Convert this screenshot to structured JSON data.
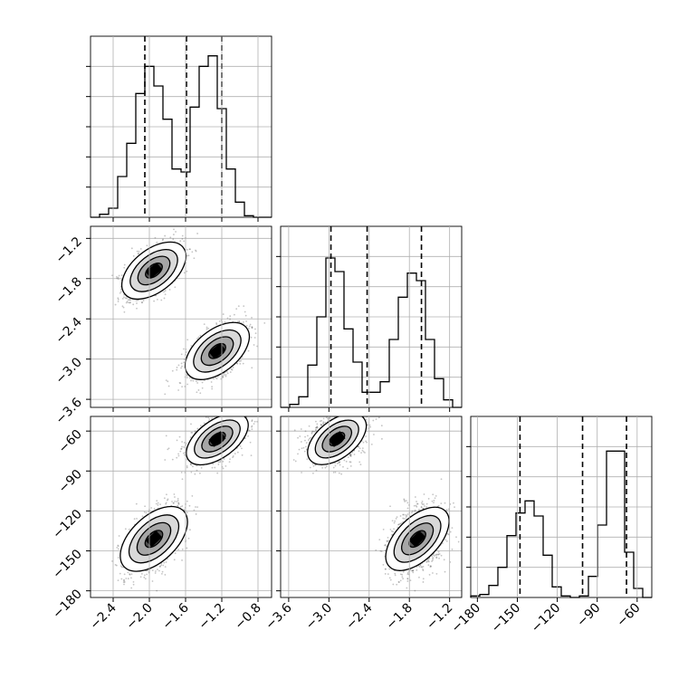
{
  "chart_data": {
    "type": "corner",
    "parameters": [
      {
        "xlim": [
          -2.65,
          -0.65
        ],
        "ticks": [
          -2.4,
          -2.0,
          -1.6,
          -1.2,
          -0.8
        ],
        "tick_labels": [
          "−2.4",
          "−2.0",
          "−1.6",
          "−1.2",
          "−0.8"
        ],
        "quantiles": [
          -2.05,
          -1.59,
          -1.2
        ],
        "histogram": {
          "bin_start": -2.65,
          "bin_width": 0.1,
          "counts": [
            0,
            2,
            6,
            27,
            49,
            82,
            100,
            87,
            65,
            32,
            30,
            73,
            100,
            107,
            72,
            32,
            10,
            1,
            0,
            0
          ]
        }
      },
      {
        "xlim": [
          -3.72,
          -1.02
        ],
        "ticks": [
          -3.6,
          -3.0,
          -2.4,
          -1.8,
          -1.2
        ],
        "tick_labels": [
          "−3.6",
          "−3.0",
          "−2.4",
          "−1.8",
          "−1.2"
        ],
        "quantiles": [
          -2.97,
          -2.43,
          -1.62
        ],
        "histogram": {
          "bin_start": -3.72,
          "bin_width": 0.135,
          "counts": [
            0,
            2,
            7,
            28,
            60,
            99,
            90,
            52,
            30,
            10,
            10,
            17,
            45,
            73,
            89,
            84,
            45,
            19,
            5,
            0
          ]
        }
      },
      {
        "xlim": [
          -185,
          -49
        ],
        "ticks": [
          -180,
          -150,
          -120,
          -90,
          -60
        ],
        "tick_labels": [
          "−180",
          "−150",
          "−120",
          "−90",
          "−60"
        ],
        "quantiles": [
          -148,
          -101,
          -68
        ],
        "histogram": {
          "bin_start": -185,
          "bin_width": 6.8,
          "counts": [
            1,
            2,
            8,
            20,
            41,
            56,
            64,
            54,
            28,
            7,
            1,
            0,
            1,
            14,
            48,
            97,
            97,
            30,
            6,
            0
          ]
        }
      }
    ],
    "hist_ylim": [
      0,
      120
    ],
    "y_ticks": {
      "1": {
        "ticks": [
          -1.2,
          -1.8,
          -2.4,
          -3.0,
          -3.6
        ],
        "tick_labels": [
          "−1.2",
          "−1.8",
          "−2.4",
          "−3.0",
          "−3.6"
        ]
      },
      "2": {
        "ticks": [
          -60,
          -90,
          -120,
          -150,
          -180
        ],
        "tick_labels": [
          "−60",
          "−90",
          "−120",
          "−150",
          "−180"
        ]
      }
    },
    "modes": [
      {
        "p0": -1.95,
        "p1": -1.68,
        "p2": -141,
        "sd": [
          0.16,
          0.2,
          12
        ]
      },
      {
        "p0": -1.25,
        "p1": -2.88,
        "p2": -66,
        "sd": [
          0.16,
          0.2,
          9
        ]
      }
    ],
    "title": "",
    "xlabel": "",
    "ylabel": "",
    "grid": true,
    "legend": "none",
    "colors": {
      "line": "#000000",
      "grid": "#b0b0b0",
      "points": "#555555"
    }
  }
}
